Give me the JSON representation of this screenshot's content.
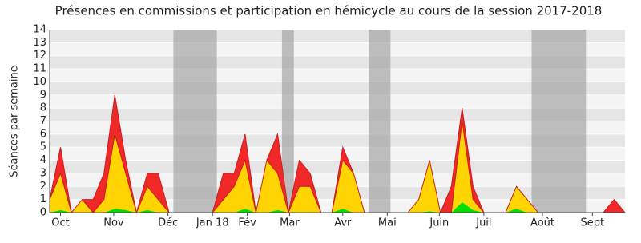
{
  "chart_data": {
    "type": "stacked_area",
    "title": "Présences en commissions et participation en hémicycle au cours de la session 2017-2018",
    "y_label": "Séances par semaine",
    "x": [
      0,
      1,
      2,
      3,
      4,
      5,
      6,
      7,
      8,
      9,
      10,
      11,
      12,
      13,
      14,
      15,
      16,
      17,
      18,
      19,
      20,
      21,
      22,
      23,
      24,
      25,
      26,
      27,
      28,
      29,
      30,
      31,
      32,
      33,
      34,
      35,
      36,
      37,
      38,
      39,
      40,
      41,
      42,
      43,
      44,
      45,
      46,
      47,
      48,
      49,
      50,
      51,
      52,
      53
    ],
    "xlim": [
      0,
      53
    ],
    "xticks": [
      {
        "value": 1,
        "label": "Oct"
      },
      {
        "value": 5.9,
        "label": "Nov"
      },
      {
        "value": 10.9,
        "label": "Déc"
      },
      {
        "value": 15,
        "label": "Jan 18"
      },
      {
        "value": 18.2,
        "label": "Fév"
      },
      {
        "value": 22.1,
        "label": "Mar"
      },
      {
        "value": 27,
        "label": "Avr"
      },
      {
        "value": 31.1,
        "label": "Mai"
      },
      {
        "value": 35.9,
        "label": "Juin"
      },
      {
        "value": 40,
        "label": "Juil"
      },
      {
        "value": 45.4,
        "label": "Août"
      },
      {
        "value": 50,
        "label": "Sept"
      }
    ],
    "ylim": [
      0,
      14
    ],
    "yticks": [
      0,
      1,
      2,
      3,
      4,
      5,
      6,
      7,
      8,
      9,
      10,
      11,
      12,
      13,
      14
    ],
    "vacations": [
      [
        11.4,
        15.4
      ],
      [
        21.4,
        22.5
      ],
      [
        29.4,
        31.4
      ],
      [
        44.4,
        49.4
      ]
    ],
    "series": [
      {
        "color": "#00e000",
        "values": [
          0,
          0.2,
          0,
          0,
          0,
          0,
          0.3,
          0.2,
          0,
          0.2,
          0,
          0,
          0,
          0,
          0,
          0,
          0,
          0,
          0.3,
          0,
          0,
          0.2,
          0,
          0,
          0,
          0,
          0,
          0.3,
          0,
          0,
          0,
          0,
          0,
          0,
          0,
          0.1,
          0,
          0,
          0.8,
          0.2,
          0,
          0,
          0,
          0.3,
          0,
          0,
          0,
          0,
          0,
          0,
          0,
          0,
          0,
          0
        ]
      },
      {
        "color": "#ffd400",
        "values": [
          1,
          2.8,
          0,
          1,
          0,
          1,
          5.7,
          2.8,
          0,
          1.8,
          1,
          0,
          0,
          0,
          0,
          0,
          1,
          2,
          3.7,
          0,
          4,
          2.8,
          0,
          2,
          2,
          0,
          0,
          3.7,
          3,
          0,
          0,
          0,
          0,
          0,
          1,
          3.9,
          0,
          0,
          6.2,
          0.8,
          0,
          0,
          0,
          1.7,
          1,
          0,
          0,
          0,
          0,
          0,
          0,
          0,
          0,
          0
        ]
      },
      {
        "color": "#f02828",
        "values": [
          0,
          2,
          0,
          0,
          1,
          2,
          3,
          1,
          0,
          1,
          2,
          0,
          0,
          0,
          0,
          0,
          2,
          1,
          2,
          0,
          0,
          3,
          0,
          2,
          1,
          0,
          0,
          1,
          0,
          0,
          0,
          0,
          0,
          0,
          0,
          0,
          0,
          2,
          1,
          1,
          0,
          0,
          0,
          0,
          0,
          0,
          0,
          0,
          0,
          0,
          0,
          0,
          1,
          0
        ]
      }
    ]
  }
}
